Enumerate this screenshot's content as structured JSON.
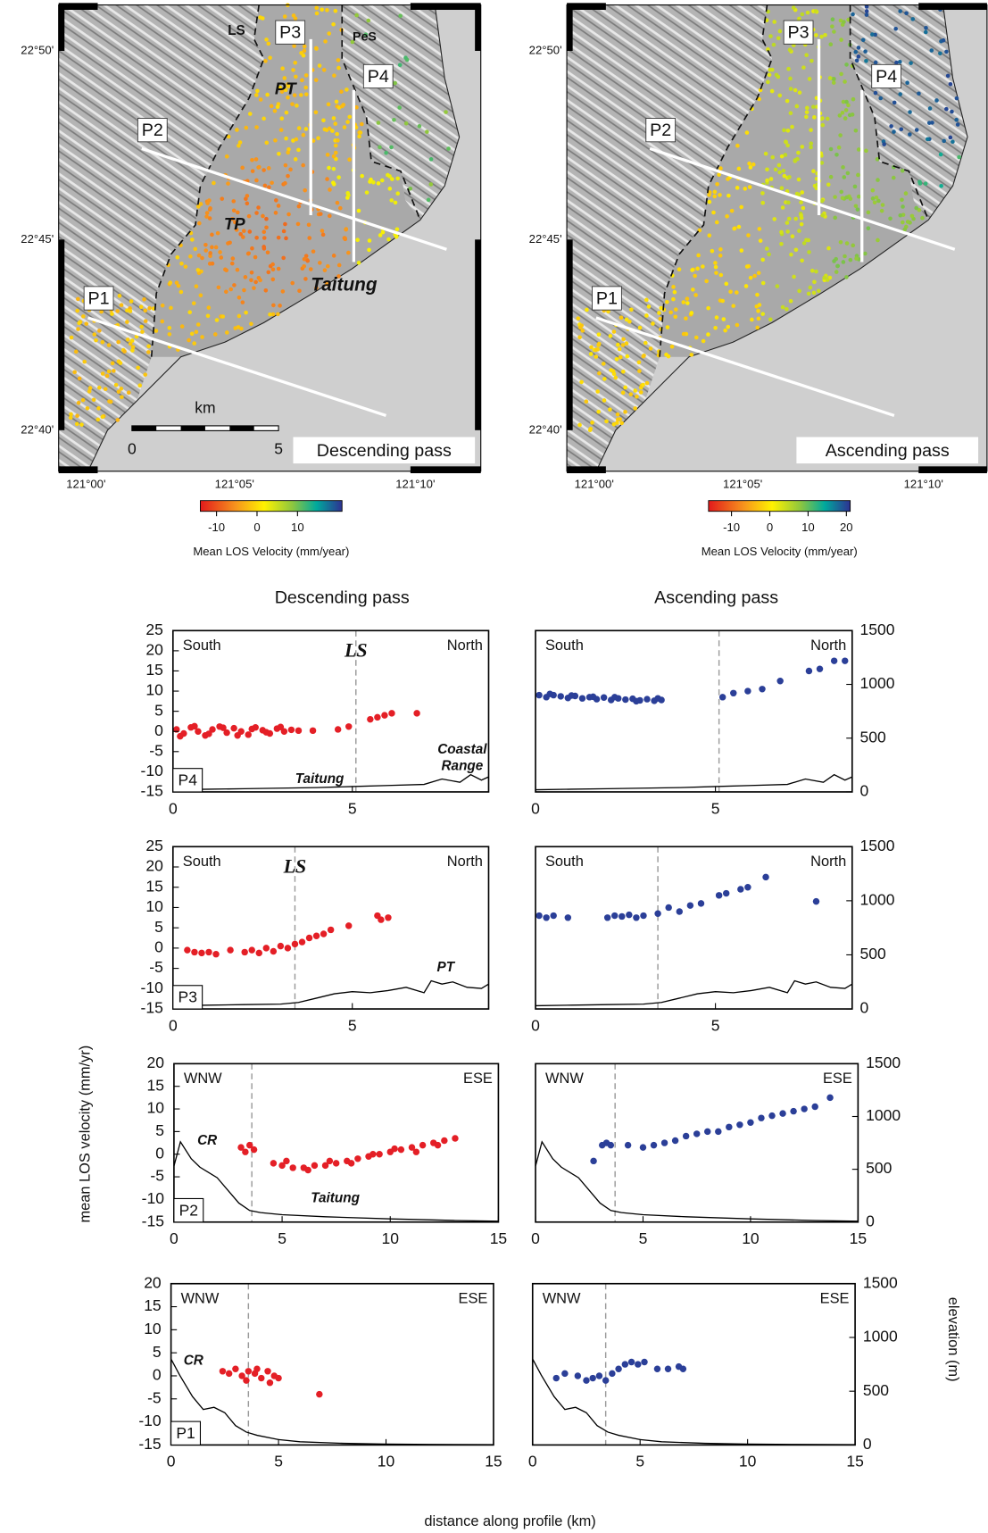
{
  "figure": {
    "column_titles": [
      "Descending pass",
      "Ascending pass"
    ],
    "y_label": "mean LOS velocity (mm/yr)",
    "y2_label": "elevation (m)",
    "x_label": "distance along profile (km)"
  },
  "maps": [
    {
      "title": "Descending pass",
      "labels": [
        "LS",
        "PT",
        "PeS",
        "TP",
        "Taitung"
      ],
      "profiles": [
        "P1",
        "P2",
        "P3",
        "P4"
      ],
      "lat_ticks": [
        "22°50'",
        "22°45'",
        "22°40'"
      ],
      "lon_ticks": [
        "121°00'",
        "121°05'",
        "121°10'"
      ],
      "scale_unit": "km",
      "scale_ticks": [
        0,
        5
      ],
      "colorbar": {
        "range": [
          -14,
          21
        ],
        "ticks": [
          -10,
          0,
          10
        ],
        "label": "Mean LOS Velocity (mm/year)"
      }
    },
    {
      "title": "Ascending pass",
      "profiles": [
        "P1",
        "P2",
        "P3",
        "P4"
      ],
      "lat_ticks": [
        "22°50'",
        "22°45'",
        "22°40'"
      ],
      "lon_ticks": [
        "121°00'",
        "121°05'",
        "121°10'"
      ],
      "colorbar": {
        "range": [
          -16,
          21
        ],
        "ticks": [
          -10,
          0,
          10,
          20
        ],
        "label": "Mean LOS Velocity (mm/year)"
      }
    }
  ],
  "chart_data": [
    {
      "type": "scatter",
      "panel": "P4",
      "corners": [
        "South",
        "North"
      ],
      "fault": "LS",
      "fault_x": 5.1,
      "annotations": [
        "Taitung",
        "Coastal",
        "Range"
      ],
      "xlim": [
        0,
        8.8
      ],
      "xticks": [
        0,
        5
      ],
      "ylim": [
        -15,
        25
      ],
      "yticks": [
        -15,
        -10,
        -5,
        0,
        5,
        10,
        15,
        20,
        25
      ],
      "y2lim": [
        0,
        1500
      ],
      "series": [
        {
          "color": "#e41f26",
          "x": [
            0.1,
            0.3,
            0.5,
            0.7,
            0.9,
            1.1,
            1.3,
            1.5,
            1.7,
            1.9,
            2.1,
            2.3,
            2.5,
            2.7,
            2.9,
            3.1,
            3.3,
            3.5,
            0.2,
            0.6,
            1.0,
            1.4,
            1.8,
            2.2,
            2.6,
            3.0,
            3.9,
            4.6,
            4.9,
            5.5,
            5.7,
            5.9,
            6.1,
            6.8
          ],
          "values": [
            0.5,
            -0.5,
            1,
            0,
            -1,
            0.5,
            1.2,
            -0.3,
            0.8,
            0,
            -0.8,
            1,
            0.3,
            -0.5,
            0.7,
            0,
            0.4,
            0.2,
            -1.2,
            1.3,
            -0.6,
            0.9,
            -1,
            0.6,
            -0.2,
            1.1,
            0.2,
            0.5,
            1.2,
            3,
            3.5,
            4,
            4.5,
            4.5
          ]
        },
        {
          "color": "#000000",
          "axis": "y2",
          "mark": "line",
          "x": [
            0,
            1,
            2,
            3,
            4,
            5,
            6,
            7,
            7.5,
            8,
            8.3,
            8.6,
            8.8
          ],
          "values": [
            20,
            25,
            30,
            35,
            40,
            50,
            60,
            70,
            120,
            90,
            160,
            110,
            140
          ]
        }
      ]
    },
    {
      "type": "scatter",
      "corners": [
        "South",
        "North"
      ],
      "fault_x": 5.1,
      "xlim": [
        0,
        8.8
      ],
      "xticks": [
        0,
        5
      ],
      "ylim": [
        -15,
        25
      ],
      "y2lim": [
        0,
        1500
      ],
      "y2ticks": [
        0,
        500,
        1000,
        1500
      ],
      "series": [
        {
          "color": "#2b3f98",
          "x": [
            0.1,
            0.3,
            0.5,
            0.7,
            0.9,
            1.1,
            1.3,
            1.5,
            1.7,
            1.9,
            2.1,
            2.3,
            2.5,
            2.7,
            2.9,
            3.1,
            3.3,
            3.5,
            0.4,
            1.0,
            1.6,
            2.2,
            2.8,
            3.4,
            5.2,
            5.5,
            5.9,
            6.3,
            6.8,
            7.6,
            7.9,
            8.3,
            8.6
          ],
          "values": [
            9,
            8.5,
            9,
            8.7,
            8.3,
            8.8,
            8.2,
            8.5,
            8,
            8.4,
            7.8,
            8.2,
            7.9,
            8.1,
            7.7,
            8,
            7.6,
            7.8,
            9.3,
            8.9,
            8.6,
            8.5,
            7.5,
            8.2,
            8.5,
            9.5,
            10,
            10.5,
            12.5,
            15,
            15.5,
            17.5,
            17.5
          ]
        },
        {
          "color": "#000000",
          "axis": "y2",
          "mark": "line",
          "x": [
            0,
            1,
            2,
            3,
            4,
            5,
            6,
            7,
            7.5,
            8,
            8.3,
            8.6,
            8.8
          ],
          "values": [
            20,
            25,
            30,
            35,
            40,
            50,
            60,
            70,
            120,
            90,
            160,
            110,
            140
          ]
        }
      ]
    },
    {
      "type": "scatter",
      "panel": "P3",
      "corners": [
        "South",
        "North"
      ],
      "fault": "LS",
      "fault_x": 3.4,
      "annotations": [
        "PT"
      ],
      "xlim": [
        0,
        8.8
      ],
      "xticks": [
        0,
        5
      ],
      "ylim": [
        -15,
        25
      ],
      "yticks": [
        -15,
        -10,
        -5,
        0,
        5,
        10,
        15,
        20,
        25
      ],
      "y2lim": [
        0,
        1500
      ],
      "series": [
        {
          "color": "#e41f26",
          "x": [
            0.4,
            0.6,
            0.8,
            1.0,
            1.2,
            1.6,
            2.0,
            2.2,
            2.4,
            2.6,
            2.8,
            3.0,
            3.2,
            3.4,
            3.6,
            3.8,
            4.0,
            4.2,
            4.4,
            4.9,
            5.7,
            5.8,
            6.0
          ],
          "values": [
            -0.5,
            -1,
            -1.2,
            -1,
            -1.5,
            -0.5,
            -1,
            -0.5,
            -1.2,
            0,
            -0.8,
            0.5,
            0,
            1,
            1.5,
            2.5,
            3,
            3.5,
            4.5,
            5.5,
            8,
            7,
            7.5
          ]
        },
        {
          "color": "#000000",
          "axis": "y2",
          "mark": "line",
          "x": [
            0,
            1,
            2,
            3,
            3.5,
            4,
            4.5,
            5,
            5.5,
            6,
            6.5,
            7,
            7.2,
            7.5,
            7.8,
            8.2,
            8.6,
            8.8
          ],
          "values": [
            30,
            35,
            40,
            45,
            60,
            100,
            140,
            160,
            150,
            170,
            200,
            150,
            260,
            230,
            250,
            200,
            190,
            230
          ]
        }
      ]
    },
    {
      "type": "scatter",
      "corners": [
        "South",
        "North"
      ],
      "fault_x": 3.4,
      "xlim": [
        0,
        8.8
      ],
      "xticks": [
        0,
        5
      ],
      "ylim": [
        -15,
        25
      ],
      "y2lim": [
        0,
        1500
      ],
      "y2ticks": [
        0,
        500,
        1000,
        1500
      ],
      "series": [
        {
          "color": "#2b3f98",
          "x": [
            0.1,
            0.3,
            0.5,
            0.9,
            2.0,
            2.2,
            2.4,
            2.6,
            2.8,
            3.0,
            3.4,
            3.7,
            4.0,
            4.3,
            4.6,
            5.1,
            5.3,
            5.7,
            5.9,
            6.4,
            7.8
          ],
          "values": [
            8,
            7.5,
            8,
            7.5,
            7.5,
            8,
            7.8,
            8.2,
            7.5,
            8,
            8.5,
            10,
            9,
            10.5,
            11,
            13,
            13.5,
            14.5,
            15,
            17.5,
            11.5
          ]
        },
        {
          "color": "#000000",
          "axis": "y2",
          "mark": "line",
          "x": [
            0,
            1,
            2,
            3,
            3.5,
            4,
            4.5,
            5,
            5.5,
            6,
            6.5,
            7,
            7.2,
            7.5,
            7.8,
            8.2,
            8.6,
            8.8
          ],
          "values": [
            30,
            35,
            40,
            45,
            60,
            100,
            140,
            160,
            150,
            170,
            200,
            150,
            260,
            230,
            250,
            200,
            190,
            230
          ]
        }
      ]
    },
    {
      "type": "scatter",
      "panel": "P2",
      "corners": [
        "WNW",
        "ESE"
      ],
      "fault_x": 3.6,
      "annotations": [
        "CR",
        "Taitung"
      ],
      "xlim": [
        0,
        15
      ],
      "xticks": [
        0,
        5,
        10,
        15
      ],
      "ylim": [
        -15,
        20
      ],
      "yticks": [
        -15,
        -10,
        -5,
        0,
        5,
        10,
        15,
        20
      ],
      "y2lim": [
        0,
        1500
      ],
      "series": [
        {
          "color": "#e41f26",
          "x": [
            3.1,
            3.3,
            3.5,
            3.7,
            4.6,
            5.0,
            5.5,
            6.0,
            6.5,
            7.0,
            7.5,
            8.0,
            8.5,
            9.0,
            9.5,
            10.0,
            10.5,
            11.0,
            11.5,
            12.0,
            12.5,
            13.0,
            5.2,
            6.2,
            7.2,
            8.2,
            9.2,
            10.2,
            11.2,
            12.2
          ],
          "values": [
            1.5,
            0.5,
            2,
            1,
            -2,
            -2.5,
            -3,
            -3,
            -2.5,
            -2.5,
            -2,
            -1.5,
            -1,
            -0.5,
            0,
            0.5,
            1,
            1.5,
            2,
            2.5,
            3,
            3.5,
            -1.5,
            -3.5,
            -1.5,
            -2,
            0,
            1.2,
            0.5,
            2
          ]
        },
        {
          "color": "#000000",
          "axis": "y2",
          "mark": "line",
          "x": [
            0,
            0.3,
            0.8,
            1.2,
            1.6,
            2.0,
            2.5,
            3,
            3.5,
            4,
            5,
            7,
            10,
            13,
            15
          ],
          "values": [
            530,
            760,
            600,
            520,
            470,
            420,
            300,
            180,
            110,
            90,
            70,
            50,
            30,
            15,
            8
          ]
        }
      ]
    },
    {
      "type": "scatter",
      "corners": [
        "WNW",
        "ESE"
      ],
      "fault_x": 3.7,
      "xlim": [
        0,
        15
      ],
      "xticks": [
        0,
        5,
        10,
        15
      ],
      "ylim": [
        -15,
        20
      ],
      "y2lim": [
        0,
        1500
      ],
      "y2ticks": [
        0,
        500,
        1000,
        1500
      ],
      "series": [
        {
          "color": "#2b3f98",
          "x": [
            2.7,
            3.1,
            3.3,
            3.5,
            4.3,
            5,
            5.5,
            6,
            6.5,
            7,
            7.5,
            8,
            8.5,
            9,
            9.5,
            10,
            10.5,
            11,
            11.5,
            12,
            12.5,
            13,
            13.7
          ],
          "values": [
            -1.5,
            2,
            2.5,
            2,
            2,
            1.5,
            2,
            2.5,
            3,
            4,
            4.5,
            5,
            5,
            6,
            6.5,
            7,
            8,
            8.5,
            9,
            9.5,
            10,
            10.5,
            12.5
          ]
        },
        {
          "color": "#000000",
          "axis": "y2",
          "mark": "line",
          "x": [
            0,
            0.3,
            0.8,
            1.2,
            1.6,
            2.0,
            2.5,
            3,
            3.5,
            4,
            5,
            7,
            10,
            13,
            15
          ],
          "values": [
            530,
            760,
            600,
            520,
            470,
            420,
            300,
            180,
            110,
            90,
            70,
            50,
            30,
            15,
            8
          ]
        }
      ]
    },
    {
      "type": "scatter",
      "panel": "P1",
      "corners": [
        "WNW",
        "ESE"
      ],
      "fault_x": 3.6,
      "annotations": [
        "CR"
      ],
      "xlim": [
        0,
        15
      ],
      "xticks": [
        0,
        5,
        10,
        15
      ],
      "ylim": [
        -15,
        20
      ],
      "yticks": [
        -15,
        -10,
        -5,
        0,
        5,
        10,
        15,
        20
      ],
      "y2lim": [
        0,
        1500
      ],
      "series": [
        {
          "color": "#e41f26",
          "x": [
            2.4,
            2.7,
            3.0,
            3.3,
            3.6,
            3.9,
            4.2,
            4.5,
            4.8,
            5.0,
            3.5,
            4.0,
            4.6,
            6.9
          ],
          "values": [
            1,
            0.5,
            1.5,
            0,
            1,
            0.5,
            -0.5,
            1,
            0,
            -0.5,
            -1,
            1.5,
            -1.5,
            -4
          ]
        },
        {
          "color": "#000000",
          "axis": "y2",
          "mark": "line",
          "x": [
            0,
            0.4,
            1,
            1.5,
            2,
            2.5,
            3,
            3.5,
            4,
            5,
            6,
            8,
            10,
            12,
            15
          ],
          "values": [
            800,
            650,
            450,
            330,
            350,
            300,
            180,
            120,
            90,
            50,
            30,
            15,
            8,
            5,
            3
          ]
        }
      ]
    },
    {
      "type": "scatter",
      "corners": [
        "WNW",
        "ESE"
      ],
      "fault_x": 3.4,
      "xlim": [
        0,
        15
      ],
      "xticks": [
        0,
        5,
        10,
        15
      ],
      "ylim": [
        -15,
        20
      ],
      "y2lim": [
        0,
        1500
      ],
      "y2ticks": [
        0,
        500,
        1000,
        1500
      ],
      "series": [
        {
          "color": "#2b3f98",
          "x": [
            1.1,
            1.5,
            2.1,
            2.5,
            2.8,
            3.1,
            3.4,
            3.7,
            4.0,
            4.3,
            4.6,
            4.9,
            5.2,
            5.8,
            6.3,
            6.8,
            7.0
          ],
          "values": [
            -0.5,
            0.5,
            0,
            -1,
            -0.5,
            0,
            -1,
            0.5,
            1.5,
            2.5,
            3,
            2.5,
            3,
            1.5,
            1.5,
            2,
            1.5
          ]
        },
        {
          "color": "#000000",
          "axis": "y2",
          "mark": "line",
          "x": [
            0,
            0.4,
            1,
            1.5,
            2,
            2.5,
            3,
            3.5,
            4,
            5,
            6,
            8,
            10,
            12,
            15
          ],
          "values": [
            800,
            650,
            450,
            330,
            350,
            300,
            180,
            120,
            90,
            50,
            30,
            15,
            8,
            5,
            3
          ]
        }
      ]
    }
  ]
}
